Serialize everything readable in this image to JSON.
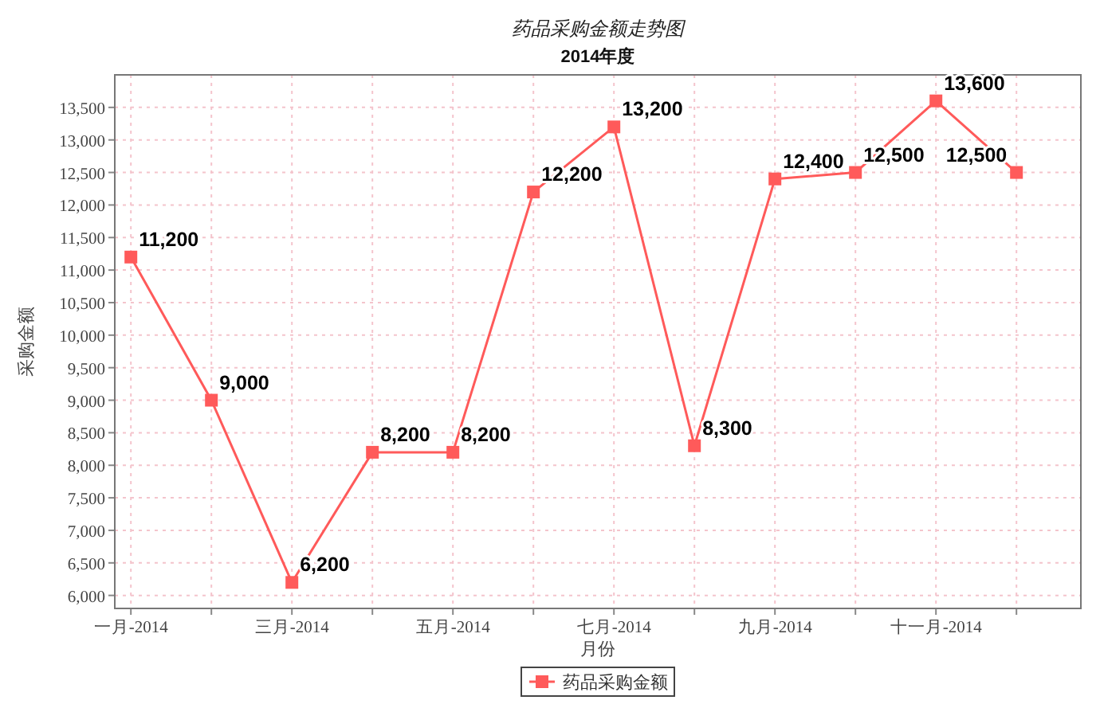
{
  "chart_data": {
    "type": "line",
    "title": "药品采购金额走势图",
    "subtitle": "2014年度",
    "xlabel": "月份",
    "ylabel": "采购金额",
    "categories": [
      "一月-2014",
      null,
      "三月-2014",
      null,
      "五月-2014",
      null,
      "七月-2014",
      null,
      "九月-2014",
      null,
      "十一月-2014",
      null
    ],
    "series": [
      {
        "name": "药品采购金额",
        "color": "#ff5a5a",
        "values": [
          11200,
          9000,
          6200,
          8200,
          8200,
          12200,
          13200,
          8300,
          12400,
          12500,
          13600,
          12500
        ],
        "value_labels": [
          "11,200",
          "9,000",
          "6,200",
          "8,200",
          "8,200",
          "12,200",
          "13,200",
          "8,300",
          "12,400",
          "12,500",
          "13,600",
          "12,500"
        ]
      }
    ],
    "ylim": [
      5800,
      14000
    ],
    "yticks": [
      {
        "value": 6000,
        "label": "6,000"
      },
      {
        "value": 6500,
        "label": "6,500"
      },
      {
        "value": 7000,
        "label": "7,000"
      },
      {
        "value": 7500,
        "label": "7,500"
      },
      {
        "value": 8000,
        "label": "8,000"
      },
      {
        "value": 8500,
        "label": "8,500"
      },
      {
        "value": 9000,
        "label": "9,000"
      },
      {
        "value": 9500,
        "label": "9,500"
      },
      {
        "value": 10000,
        "label": "10,000"
      },
      {
        "value": 10500,
        "label": "10,500"
      },
      {
        "value": 11000,
        "label": "11,000"
      },
      {
        "value": 11500,
        "label": "11,500"
      },
      {
        "value": 12000,
        "label": "12,000"
      },
      {
        "value": 12500,
        "label": "12,500"
      },
      {
        "value": 13000,
        "label": "13,000"
      },
      {
        "value": 13500,
        "label": "13,500"
      }
    ],
    "grid": true,
    "legend": "bottom",
    "marker": "square",
    "line_style": "solid"
  }
}
